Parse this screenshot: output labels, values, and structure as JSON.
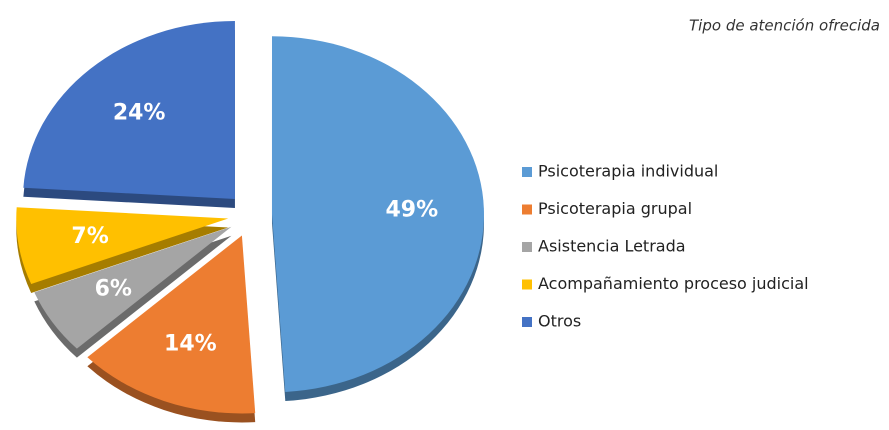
{
  "chart_data": {
    "type": "pie",
    "title": "Tipo de atención ofrecida",
    "categories": [
      "Psicoterapia individual",
      "Psicoterapia grupal",
      "Asistencia Letrada",
      "Acompañamiento proceso judicial",
      "Otros"
    ],
    "values": [
      49,
      14,
      6,
      7,
      24
    ],
    "value_labels": [
      "49%",
      "14%",
      "6%",
      "7%",
      "24%"
    ],
    "colors": [
      "#5b9bd5",
      "#ed7d31",
      "#a5a5a5",
      "#ffc000",
      "#4472c4"
    ],
    "legend": "right"
  }
}
